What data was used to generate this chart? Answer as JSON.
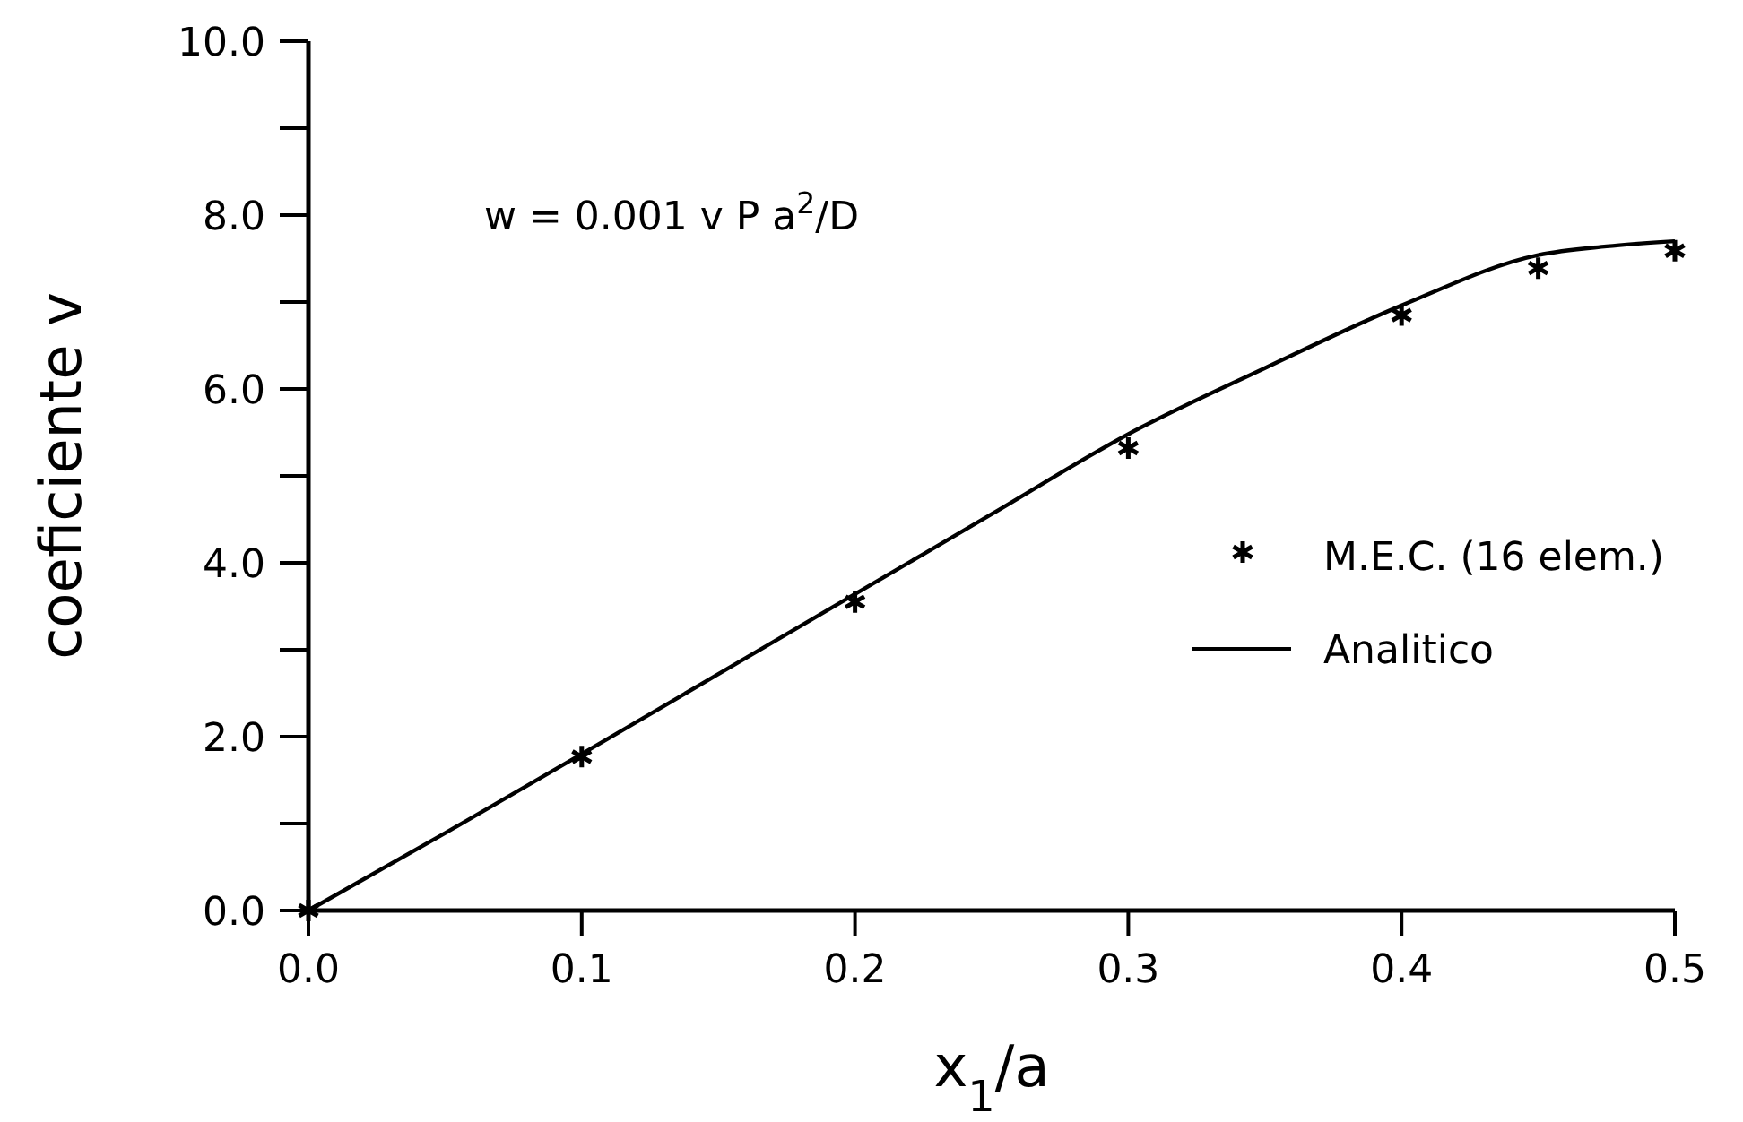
{
  "chart_data": {
    "type": "line",
    "xlabel": "x$_{1}$/a",
    "ylabel": "coeficiente v",
    "annotations": [
      "w = 0.001 v P a$^{2}$/D"
    ],
    "xlim": [
      0,
      0.5
    ],
    "ylim": [
      0,
      10
    ],
    "xticks": [
      {
        "value": 0,
        "label": "0.0"
      },
      0.1,
      0.2,
      0.3,
      0.4,
      0.5
    ],
    "yticks": [
      {
        "value": 0,
        "label": "0.0"
      },
      {
        "value": 1,
        "label": null
      },
      {
        "value": 2,
        "label": "2.0"
      },
      {
        "value": 3,
        "label": null
      },
      {
        "value": 4,
        "label": "4.0"
      },
      {
        "value": 5,
        "label": null
      },
      {
        "value": 6,
        "label": "6.0"
      },
      {
        "value": 7,
        "label": null
      },
      {
        "value": 8,
        "label": "8.0"
      },
      {
        "value": 9,
        "label": null
      },
      {
        "value": 10,
        "label": "10.0"
      }
    ],
    "legend": "right",
    "grid": false,
    "series": [
      {
        "name": "M.E.C. (16 elem.)",
        "type": "scatter",
        "marker": "cross",
        "color": "#000000",
        "x": [
          0,
          0.1,
          0.2,
          0.3,
          0.4,
          0.45,
          0.5
        ],
        "values": [
          0,
          1.77,
          3.55,
          5.32,
          6.85,
          7.39,
          7.59
        ]
      },
      {
        "name": "Analitico",
        "marker": "none",
        "line_style": "solid",
        "color": "#000000",
        "x": [
          0,
          0.05,
          0.1,
          0.15,
          0.2,
          0.25,
          0.3,
          0.35,
          0.4,
          0.45,
          0.475,
          0.5
        ],
        "values": [
          0,
          0.89,
          1.8,
          2.72,
          3.64,
          4.56,
          5.48,
          6.24,
          6.96,
          7.54,
          7.64,
          7.7
        ]
      }
    ]
  }
}
